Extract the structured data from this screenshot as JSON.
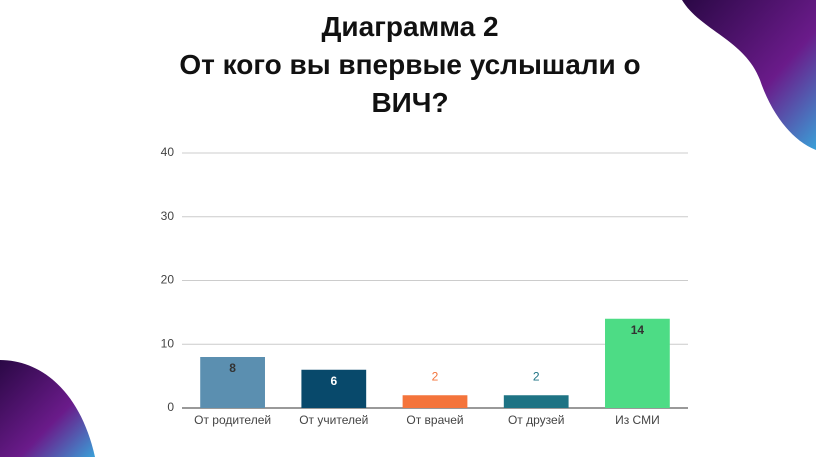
{
  "chart_data": {
    "type": "bar",
    "title": "Диаграмма 2",
    "subtitle": "От кого вы впервые услышали о ВИЧ?",
    "categories": [
      "От родителей",
      "От учителей",
      "От врачей",
      "От друзей",
      "Из СМИ"
    ],
    "values": [
      8,
      6,
      2,
      2,
      14
    ],
    "colors": [
      "#5b8fb0",
      "#08496b",
      "#f4743b",
      "#1e7384",
      "#4ddc85"
    ],
    "label_colors": [
      "#333333",
      "#ffffff",
      "#f4743b",
      "#1e7384",
      "#333333"
    ],
    "ylim": [
      0,
      40
    ],
    "yticks": [
      0,
      10,
      20,
      30,
      40
    ],
    "grid": true
  }
}
